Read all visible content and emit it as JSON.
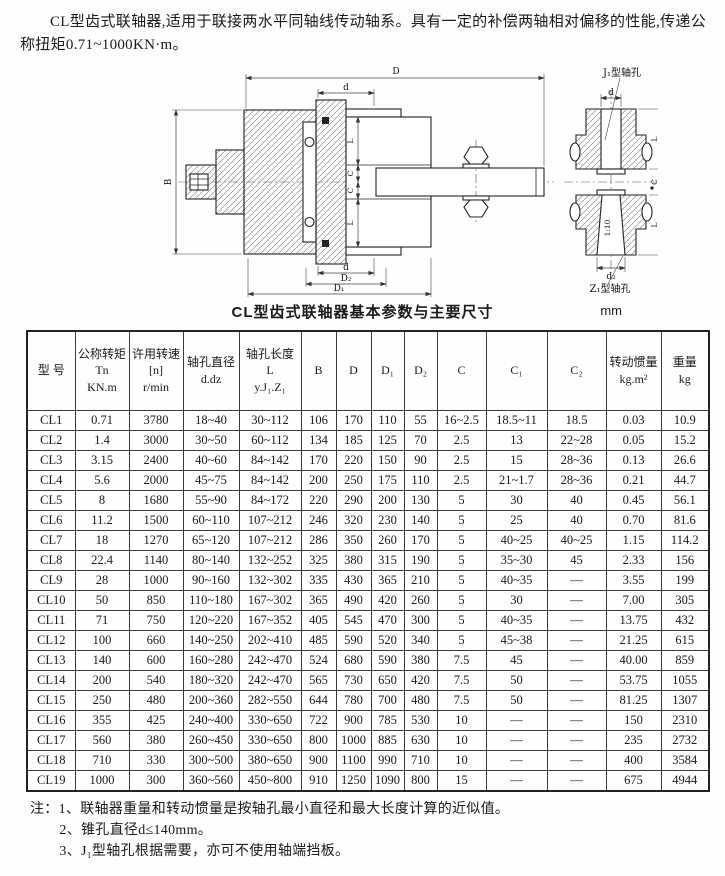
{
  "intro": "CL型齿式联轴器,适用于联接两水平同轴线传动轴系。具有一定的补偿两轴相对偏移的性能,传递公称扭矩0.71~1000KN·m。",
  "drawing": {
    "labels": {
      "D": "D",
      "d": "d",
      "B": "B",
      "L": "L",
      "C": "C",
      "D2": "D₂",
      "D1": "D₁",
      "d2": "d₂",
      "taper": "1:10",
      "j1_hole": "J₁型轴孔",
      "z1_hole": "Z₁型轴孔"
    }
  },
  "table": {
    "title": "CL型齿式联轴器基本参数与主要尺寸",
    "unit": "mm",
    "columns": [
      "型 号",
      "公称转矩\nTn\nKN.m",
      "许用转速\n[n]\nr/min",
      "轴孔直径\nd.dz",
      "轴孔长度\nL\ny.J₁.Z₁",
      "B",
      "D",
      "D₁",
      "D₂",
      "C",
      "C₁",
      "C₂",
      "转动惯量\nkg.m²",
      "重量\nkg"
    ],
    "rows": [
      [
        "CL1",
        "0.71",
        "3780",
        "18~40",
        "30~112",
        "106",
        "170",
        "110",
        "55",
        "16~2.5",
        "18.5~11",
        "18.5",
        "0.03",
        "10.9"
      ],
      [
        "CL2",
        "1.4",
        "3000",
        "30~50",
        "60~112",
        "134",
        "185",
        "125",
        "70",
        "2.5",
        "13",
        "22~28",
        "0.05",
        "15.2"
      ],
      [
        "CL3",
        "3.15",
        "2400",
        "40~60",
        "84~142",
        "170",
        "220",
        "150",
        "90",
        "2.5",
        "15",
        "28~36",
        "0.13",
        "26.6"
      ],
      [
        "CL4",
        "5.6",
        "2000",
        "45~75",
        "84~142",
        "200",
        "250",
        "175",
        "110",
        "2.5",
        "21~1.7",
        "28~36",
        "0.21",
        "44.7"
      ],
      [
        "CL5",
        "8",
        "1680",
        "55~90",
        "84~172",
        "220",
        "290",
        "200",
        "130",
        "5",
        "30",
        "40",
        "0.45",
        "56.1"
      ],
      [
        "CL6",
        "11.2",
        "1500",
        "60~110",
        "107~212",
        "246",
        "320",
        "230",
        "140",
        "5",
        "25",
        "40",
        "0.70",
        "81.6"
      ],
      [
        "CL7",
        "18",
        "1270",
        "65~120",
        "107~212",
        "286",
        "350",
        "260",
        "170",
        "5",
        "40~25",
        "40~25",
        "1.15",
        "114.2"
      ],
      [
        "CL8",
        "22.4",
        "1140",
        "80~140",
        "132~252",
        "325",
        "380",
        "315",
        "190",
        "5",
        "35~30",
        "45",
        "2.33",
        "156"
      ],
      [
        "CL9",
        "28",
        "1000",
        "90~160",
        "132~302",
        "335",
        "430",
        "365",
        "210",
        "5",
        "40~35",
        "—",
        "3.55",
        "199"
      ],
      [
        "CL10",
        "50",
        "850",
        "110~180",
        "167~302",
        "365",
        "490",
        "420",
        "260",
        "5",
        "30",
        "—",
        "7.00",
        "305"
      ],
      [
        "CL11",
        "71",
        "750",
        "120~220",
        "167~352",
        "405",
        "545",
        "470",
        "300",
        "5",
        "40~35",
        "—",
        "13.75",
        "432"
      ],
      [
        "CL12",
        "100",
        "660",
        "140~250",
        "202~410",
        "485",
        "590",
        "520",
        "340",
        "5",
        "45~38",
        "—",
        "21.25",
        "615"
      ],
      [
        "CL13",
        "140",
        "600",
        "160~280",
        "242~470",
        "524",
        "680",
        "590",
        "380",
        "7.5",
        "45",
        "—",
        "40.00",
        "859"
      ],
      [
        "CL14",
        "200",
        "540",
        "180~320",
        "242~470",
        "565",
        "730",
        "650",
        "420",
        "7.5",
        "50",
        "—",
        "53.75",
        "1055"
      ],
      [
        "CL15",
        "250",
        "480",
        "200~360",
        "282~550",
        "644",
        "780",
        "700",
        "480",
        "7.5",
        "50",
        "—",
        "81.25",
        "1307"
      ],
      [
        "CL16",
        "355",
        "425",
        "240~400",
        "330~650",
        "722",
        "900",
        "785",
        "530",
        "10",
        "—",
        "—",
        "150",
        "2310"
      ],
      [
        "CL17",
        "560",
        "380",
        "260~450",
        "330~650",
        "800",
        "1000",
        "885",
        "630",
        "10",
        "—",
        "—",
        "235",
        "2732"
      ],
      [
        "CL18",
        "710",
        "330",
        "300~500",
        "380~650",
        "900",
        "1100",
        "990",
        "710",
        "10",
        "—",
        "—",
        "400",
        "3584"
      ],
      [
        "CL19",
        "1000",
        "300",
        "360~560",
        "450~800",
        "910",
        "1250",
        "1090",
        "800",
        "15",
        "—",
        "—",
        "675",
        "4944"
      ]
    ]
  },
  "notes": [
    "注：1、联轴器重量和转动惯量是按轴孔最小直径和最大长度计算的近似值。",
    "2、锥孔直径d≤140mm。",
    "3、J₁型轴孔根据需要，亦可不使用轴端挡板。"
  ]
}
